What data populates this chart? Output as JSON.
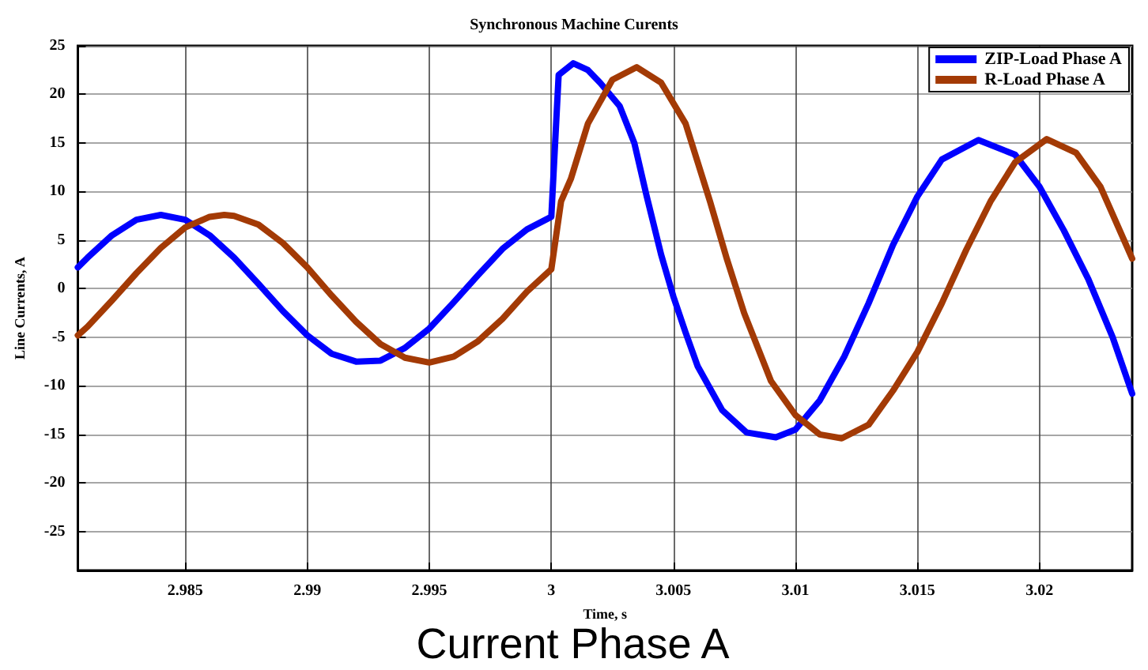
{
  "chart_data": {
    "type": "line",
    "title": "Synchronous Machine Curents",
    "xlabel": "Time, s",
    "ylabel": "Line Currents, A",
    "annotations": [
      "Current Phase A"
    ],
    "xlim": [
      2.9806,
      3.0238
    ],
    "xticks": [
      2.985,
      2.99,
      2.995,
      3,
      3.005,
      3.01,
      3.015,
      3.02
    ],
    "ylim": [
      -29,
      25
    ],
    "yticks": [
      -25,
      -20,
      -15,
      -10,
      -5,
      0,
      5,
      10,
      15,
      20,
      25
    ],
    "grid": true,
    "legend": "top right",
    "marker": "none",
    "line_style": "solid",
    "series": [
      {
        "name": "ZIP-Load Phase A",
        "color": "#0000ff",
        "x": [
          2.9806,
          2.981,
          2.982,
          2.983,
          2.984,
          2.985,
          2.986,
          2.987,
          2.988,
          2.989,
          2.99,
          2.991,
          2.992,
          2.993,
          2.994,
          2.995,
          2.996,
          2.997,
          2.998,
          2.999,
          3.0,
          3.0003,
          3.0009,
          3.0015,
          3.002,
          3.0028,
          3.0034,
          3.0039,
          3.0045,
          3.005,
          3.0055,
          3.006,
          3.007,
          3.008,
          3.0092,
          3.01,
          3.011,
          3.012,
          3.013,
          3.014,
          3.015,
          3.016,
          3.0175,
          3.019,
          3.02,
          3.021,
          3.022,
          3.023,
          3.0238
        ],
        "values": [
          2.2,
          3.2,
          5.5,
          7.1,
          7.6,
          7.1,
          5.5,
          3.2,
          0.5,
          -2.3,
          -4.8,
          -6.7,
          -7.5,
          -7.4,
          -6.1,
          -4.1,
          -1.4,
          1.4,
          4.1,
          6.1,
          7.4,
          22,
          23.2,
          22.5,
          21.2,
          18.8,
          15,
          9.6,
          3.5,
          -0.8,
          -4.5,
          -8,
          -12.5,
          -14.8,
          -15.3,
          -14.5,
          -11.5,
          -7,
          -1.5,
          4.5,
          9.5,
          13.3,
          15.3,
          13.8,
          10.5,
          6,
          1,
          -5,
          -10.8
        ]
      },
      {
        "name": "R-Load Phase A",
        "color": "#a33a05",
        "x": [
          2.9806,
          2.981,
          2.982,
          2.983,
          2.984,
          2.985,
          2.986,
          2.9866,
          2.987,
          2.988,
          2.989,
          2.99,
          2.991,
          2.992,
          2.993,
          2.994,
          2.995,
          2.996,
          2.997,
          2.998,
          2.999,
          3.0,
          3.0004,
          3.0008,
          3.0015,
          3.0025,
          3.0035,
          3.0045,
          3.0055,
          3.0065,
          3.0072,
          3.0079,
          3.009,
          3.01,
          3.011,
          3.0119,
          3.013,
          3.014,
          3.015,
          3.016,
          3.017,
          3.018,
          3.019,
          3.0203,
          3.0215,
          3.0225,
          3.0238
        ],
        "values": [
          -4.8,
          -3.9,
          -1.2,
          1.6,
          4.2,
          6.3,
          7.4,
          7.6,
          7.5,
          6.6,
          4.7,
          2.2,
          -0.7,
          -3.4,
          -5.7,
          -7.1,
          -7.6,
          -7,
          -5.4,
          -3.1,
          -0.3,
          2,
          9,
          11.3,
          17,
          21.5,
          22.8,
          21.2,
          17,
          9,
          3,
          -2.5,
          -9.5,
          -13,
          -15,
          -15.4,
          -14,
          -10.5,
          -6.5,
          -1.5,
          4,
          9,
          13,
          15.4,
          14,
          10.5,
          3.1
        ]
      }
    ]
  }
}
